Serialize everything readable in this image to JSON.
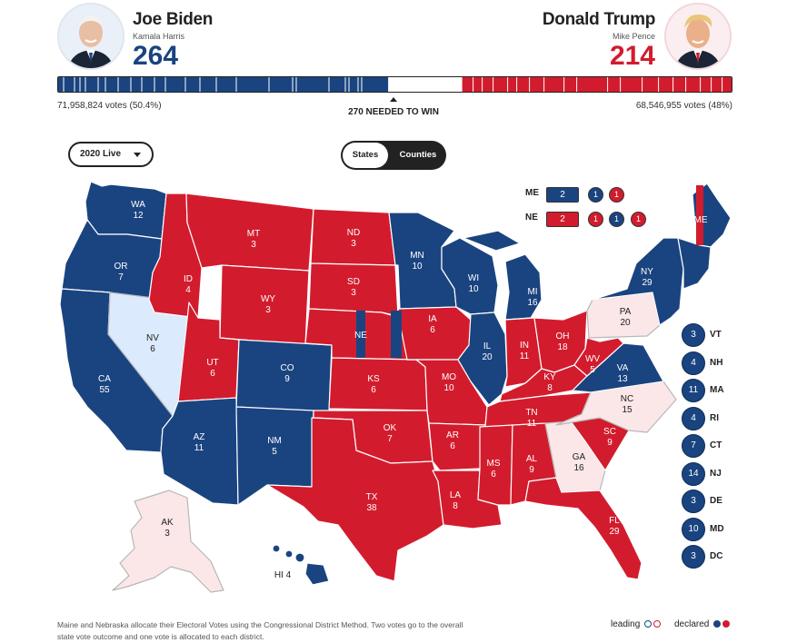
{
  "colors": {
    "dem": "#1a4480",
    "rep": "#d21c2d",
    "dem_lean": "#dbeafc",
    "rep_lean": "#fbe6e8",
    "undecided": "#ffffff"
  },
  "candidates": {
    "dem": {
      "name": "Joe Biden",
      "vp": "Kamala Harris",
      "electoral_votes": "264",
      "popular_vote": "71,958,824 votes (50.4%)",
      "electoral_share": 0.49
    },
    "rep": {
      "name": "Donald Trump",
      "vp": "Mike Pence",
      "electoral_votes": "214",
      "popular_vote": "68,546,955 votes (48%)",
      "electoral_share": 0.4
    }
  },
  "needed_label": "270 NEEDED TO WIN",
  "controls": {
    "year_select": "2020 Live",
    "view_options": [
      "States",
      "Counties"
    ],
    "view_selected": "States"
  },
  "states": [
    {
      "abbr": "WA",
      "ev": "12",
      "party": "dem"
    },
    {
      "abbr": "OR",
      "ev": "7",
      "party": "dem"
    },
    {
      "abbr": "CA",
      "ev": "55",
      "party": "dem"
    },
    {
      "abbr": "NV",
      "ev": "6",
      "party": "dem_lean"
    },
    {
      "abbr": "ID",
      "ev": "4",
      "party": "rep"
    },
    {
      "abbr": "MT",
      "ev": "3",
      "party": "rep"
    },
    {
      "abbr": "WY",
      "ev": "3",
      "party": "rep"
    },
    {
      "abbr": "UT",
      "ev": "6",
      "party": "rep"
    },
    {
      "abbr": "CO",
      "ev": "9",
      "party": "dem"
    },
    {
      "abbr": "AZ",
      "ev": "11",
      "party": "dem"
    },
    {
      "abbr": "NM",
      "ev": "5",
      "party": "dem"
    },
    {
      "abbr": "ND",
      "ev": "3",
      "party": "rep"
    },
    {
      "abbr": "SD",
      "ev": "3",
      "party": "rep"
    },
    {
      "abbr": "NE",
      "ev": "",
      "party": "rep"
    },
    {
      "abbr": "KS",
      "ev": "6",
      "party": "rep"
    },
    {
      "abbr": "OK",
      "ev": "7",
      "party": "rep"
    },
    {
      "abbr": "TX",
      "ev": "38",
      "party": "rep"
    },
    {
      "abbr": "MN",
      "ev": "10",
      "party": "dem"
    },
    {
      "abbr": "IA",
      "ev": "6",
      "party": "rep"
    },
    {
      "abbr": "MO",
      "ev": "10",
      "party": "rep"
    },
    {
      "abbr": "AR",
      "ev": "6",
      "party": "rep"
    },
    {
      "abbr": "LA",
      "ev": "8",
      "party": "rep"
    },
    {
      "abbr": "WI",
      "ev": "10",
      "party": "dem"
    },
    {
      "abbr": "IL",
      "ev": "20",
      "party": "dem"
    },
    {
      "abbr": "MI",
      "ev": "16",
      "party": "dem"
    },
    {
      "abbr": "IN",
      "ev": "11",
      "party": "rep"
    },
    {
      "abbr": "OH",
      "ev": "18",
      "party": "rep"
    },
    {
      "abbr": "KY",
      "ev": "8",
      "party": "rep"
    },
    {
      "abbr": "TN",
      "ev": "11",
      "party": "rep"
    },
    {
      "abbr": "MS",
      "ev": "6",
      "party": "rep"
    },
    {
      "abbr": "AL",
      "ev": "9",
      "party": "rep"
    },
    {
      "abbr": "GA",
      "ev": "16",
      "party": "rep_lean"
    },
    {
      "abbr": "FL",
      "ev": "29",
      "party": "rep"
    },
    {
      "abbr": "SC",
      "ev": "9",
      "party": "rep"
    },
    {
      "abbr": "NC",
      "ev": "15",
      "party": "rep_lean"
    },
    {
      "abbr": "VA",
      "ev": "13",
      "party": "dem"
    },
    {
      "abbr": "WV",
      "ev": "5",
      "party": "rep"
    },
    {
      "abbr": "PA",
      "ev": "20",
      "party": "rep_lean"
    },
    {
      "abbr": "NY",
      "ev": "29",
      "party": "dem"
    },
    {
      "abbr": "ME",
      "ev": "",
      "party": "dem"
    },
    {
      "abbr": "AK",
      "ev": "3",
      "party": "rep_lean"
    },
    {
      "abbr": "HI",
      "ev": "4",
      "party": "dem"
    }
  ],
  "small_states": [
    {
      "abbr": "VT",
      "ev": "3"
    },
    {
      "abbr": "NH",
      "ev": "4"
    },
    {
      "abbr": "MA",
      "ev": "11"
    },
    {
      "abbr": "RI",
      "ev": "4"
    },
    {
      "abbr": "CT",
      "ev": "7"
    },
    {
      "abbr": "NJ",
      "ev": "14"
    },
    {
      "abbr": "DE",
      "ev": "3"
    },
    {
      "abbr": "MD",
      "ev": "10"
    },
    {
      "abbr": "DC",
      "ev": "3"
    }
  ],
  "districts": {
    "me": {
      "label": "ME",
      "state": "2",
      "cds": [
        "1",
        "1"
      ],
      "cd_parties": [
        "dem",
        "rep"
      ]
    },
    "ne": {
      "label": "NE",
      "state": "2",
      "cds": [
        "1",
        "1",
        "1"
      ],
      "cd_parties": [
        "rep",
        "dem",
        "rep"
      ]
    }
  },
  "footnote": "Maine and Nebraska allocate their Electoral Votes using the Congressional District Method. Two votes go to the overall state vote outcome and one vote is allocated to each district.",
  "legend": {
    "leading": "leading",
    "declared": "declared"
  }
}
